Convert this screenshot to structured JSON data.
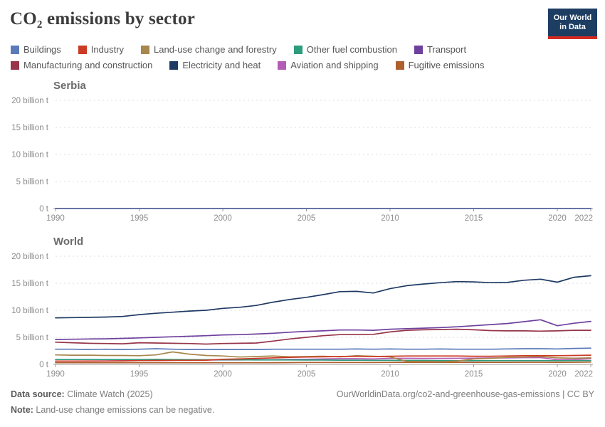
{
  "header": {
    "title": "CO₂ emissions by sector",
    "logo": {
      "line1": "Our World",
      "line2": "in Data",
      "bg": "#1d3d63",
      "accent": "#d42b21"
    }
  },
  "legend": {
    "items": [
      {
        "label": "Buildings",
        "color": "#5b7ab9"
      },
      {
        "label": "Industry",
        "color": "#cb3a24"
      },
      {
        "label": "Land-use change and forestry",
        "color": "#a7874b"
      },
      {
        "label": "Other fuel combustion",
        "color": "#2c9c7c"
      },
      {
        "label": "Transport",
        "color": "#6e419e"
      },
      {
        "label": "Manufacturing and construction",
        "color": "#97354a"
      },
      {
        "label": "Electricity and heat",
        "color": "#1f3a63"
      },
      {
        "label": "Aviation and shipping",
        "color": "#b45cb5"
      },
      {
        "label": "Fugitive emissions",
        "color": "#ad5f2d"
      }
    ]
  },
  "footer": {
    "source_label": "Data source:",
    "source_value": " Climate Watch (2025)",
    "link": "OurWorldinData.org/co2-and-greenhouse-gas-emissions | CC BY",
    "note_label": "Note:",
    "note_value": " Land-use change emissions can be negative."
  },
  "chart_data": [
    {
      "id": "serbia",
      "type": "line",
      "title": "Serbia",
      "unit": "billion t",
      "ylim": [
        0,
        20
      ],
      "yticks": [
        {
          "v": 0,
          "label": "0 t"
        },
        {
          "v": 5,
          "label": "5 billion t"
        },
        {
          "v": 10,
          "label": "10 billion t"
        },
        {
          "v": 15,
          "label": "15 billion t"
        },
        {
          "v": 20,
          "label": "20 billion t"
        }
      ],
      "xticks": [
        1990,
        1995,
        2000,
        2005,
        2010,
        2015,
        2020,
        2022
      ],
      "x": [
        1990,
        1991,
        1992,
        1993,
        1994,
        1995,
        1996,
        1997,
        1998,
        1999,
        2000,
        2001,
        2002,
        2003,
        2004,
        2005,
        2006,
        2007,
        2008,
        2009,
        2010,
        2011,
        2012,
        2013,
        2014,
        2015,
        2016,
        2017,
        2018,
        2019,
        2020,
        2021,
        2022
      ],
      "series": [
        {
          "name": "Buildings",
          "color": "#5b7ab9",
          "flat": 0.004
        },
        {
          "name": "Industry",
          "color": "#cb3a24",
          "flat": 0.004
        },
        {
          "name": "Land-use change and forestry",
          "color": "#a7874b",
          "flat": 0.001
        },
        {
          "name": "Other fuel combustion",
          "color": "#2c9c7c",
          "flat": 0.002
        },
        {
          "name": "Transport",
          "color": "#6e419e",
          "flat": 0.008
        },
        {
          "name": "Manufacturing and construction",
          "color": "#97354a",
          "flat": 0.005
        },
        {
          "name": "Electricity and heat",
          "color": "#1f3a63",
          "flat": 0.03
        },
        {
          "name": "Aviation and shipping",
          "color": "#b45cb5",
          "flat": 0.001
        },
        {
          "name": "Fugitive emissions",
          "color": "#ad5f2d",
          "flat": 0.004
        }
      ]
    },
    {
      "id": "world",
      "type": "line",
      "title": "World",
      "unit": "billion t",
      "ylim": [
        0,
        20
      ],
      "yticks": [
        {
          "v": 0,
          "label": "0 t"
        },
        {
          "v": 5,
          "label": "5 billion t"
        },
        {
          "v": 10,
          "label": "10 billion t"
        },
        {
          "v": 15,
          "label": "15 billion t"
        },
        {
          "v": 20,
          "label": "20 billion t"
        }
      ],
      "xticks": [
        1990,
        1995,
        2000,
        2005,
        2010,
        2015,
        2020,
        2022
      ],
      "x": [
        1990,
        1991,
        1992,
        1993,
        1994,
        1995,
        1996,
        1997,
        1998,
        1999,
        2000,
        2001,
        2002,
        2003,
        2004,
        2005,
        2006,
        2007,
        2008,
        2009,
        2010,
        2011,
        2012,
        2013,
        2014,
        2015,
        2016,
        2017,
        2018,
        2019,
        2020,
        2021,
        2022
      ],
      "series": [
        {
          "name": "Buildings",
          "color": "#5b7ab9",
          "values": [
            2.8,
            2.8,
            2.75,
            2.8,
            2.75,
            2.8,
            2.9,
            2.8,
            2.75,
            2.75,
            2.75,
            2.75,
            2.75,
            2.8,
            2.8,
            2.8,
            2.8,
            2.8,
            2.85,
            2.8,
            2.85,
            2.8,
            2.8,
            2.85,
            2.8,
            2.8,
            2.8,
            2.85,
            2.9,
            2.9,
            2.85,
            2.95,
            3.0
          ]
        },
        {
          "name": "Industry",
          "color": "#cb3a24",
          "values": [
            0.6,
            0.6,
            0.6,
            0.62,
            0.65,
            0.7,
            0.72,
            0.75,
            0.75,
            0.78,
            0.95,
            1.0,
            1.1,
            1.2,
            1.3,
            1.35,
            1.4,
            1.45,
            1.5,
            1.45,
            1.5,
            1.55,
            1.55,
            1.55,
            1.55,
            1.5,
            1.5,
            1.55,
            1.6,
            1.6,
            1.6,
            1.65,
            1.7
          ]
        },
        {
          "name": "Land-use change and forestry",
          "color": "#a7874b",
          "values": [
            1.75,
            1.7,
            1.7,
            1.65,
            1.65,
            1.6,
            1.75,
            2.3,
            1.9,
            1.65,
            1.55,
            1.35,
            1.45,
            1.55,
            1.4,
            1.45,
            1.5,
            1.4,
            1.6,
            1.5,
            1.4,
            0.55,
            0.55,
            0.5,
            0.6,
            1.0,
            1.1,
            1.3,
            1.35,
            1.45,
            1.2,
            1.15,
            1.2
          ]
        },
        {
          "name": "Other fuel combustion",
          "color": "#2c9c7c",
          "values": [
            0.9,
            0.9,
            0.9,
            0.9,
            0.9,
            0.9,
            0.92,
            0.9,
            0.88,
            0.85,
            0.85,
            0.85,
            0.82,
            0.82,
            0.82,
            0.8,
            0.8,
            0.78,
            0.78,
            0.75,
            0.75,
            0.72,
            0.72,
            0.7,
            0.68,
            0.68,
            0.68,
            0.7,
            0.7,
            0.7,
            0.68,
            0.7,
            0.7
          ]
        },
        {
          "name": "Transport",
          "color": "#6e419e",
          "values": [
            4.6,
            4.65,
            4.7,
            4.72,
            4.8,
            4.9,
            5.0,
            5.1,
            5.2,
            5.3,
            5.45,
            5.5,
            5.6,
            5.75,
            5.95,
            6.1,
            6.2,
            6.35,
            6.35,
            6.3,
            6.5,
            6.6,
            6.7,
            6.8,
            6.95,
            7.15,
            7.35,
            7.55,
            7.9,
            8.25,
            7.15,
            7.6,
            7.95
          ]
        },
        {
          "name": "Manufacturing and construction",
          "color": "#97354a",
          "values": [
            4.1,
            4.0,
            3.9,
            3.85,
            3.8,
            4.0,
            3.95,
            3.9,
            3.85,
            3.75,
            3.85,
            3.9,
            3.95,
            4.3,
            4.7,
            5.0,
            5.3,
            5.5,
            5.5,
            5.55,
            6.0,
            6.3,
            6.4,
            6.45,
            6.5,
            6.4,
            6.25,
            6.2,
            6.2,
            6.15,
            6.2,
            6.3,
            6.3
          ]
        },
        {
          "name": "Electricity and heat",
          "color": "#1f3a63",
          "values": [
            8.6,
            8.65,
            8.7,
            8.75,
            8.85,
            9.2,
            9.45,
            9.65,
            9.85,
            10.0,
            10.35,
            10.55,
            10.9,
            11.5,
            12.0,
            12.4,
            12.9,
            13.45,
            13.5,
            13.2,
            14.0,
            14.55,
            14.85,
            15.1,
            15.3,
            15.25,
            15.1,
            15.15,
            15.55,
            15.75,
            15.2,
            16.1,
            16.4
          ]
        },
        {
          "name": "Aviation and shipping",
          "color": "#b45cb5",
          "values": [
            0.62,
            0.62,
            0.63,
            0.65,
            0.67,
            0.7,
            0.72,
            0.75,
            0.78,
            0.8,
            0.82,
            0.82,
            0.85,
            0.85,
            0.92,
            0.95,
            1.0,
            1.05,
            1.05,
            1.0,
            1.1,
            1.12,
            1.1,
            1.1,
            1.12,
            1.15,
            1.18,
            1.2,
            1.25,
            1.25,
            0.85,
            0.9,
            1.05
          ]
        },
        {
          "name": "Fugitive emissions",
          "color": "#ad5f2d",
          "values": [
            0.3,
            0.3,
            0.3,
            0.3,
            0.3,
            0.3,
            0.3,
            0.3,
            0.3,
            0.3,
            0.3,
            0.3,
            0.3,
            0.32,
            0.33,
            0.35,
            0.35,
            0.35,
            0.35,
            0.35,
            0.37,
            0.38,
            0.38,
            0.38,
            0.38,
            0.38,
            0.37,
            0.38,
            0.4,
            0.4,
            0.38,
            0.4,
            0.42
          ]
        }
      ]
    }
  ]
}
